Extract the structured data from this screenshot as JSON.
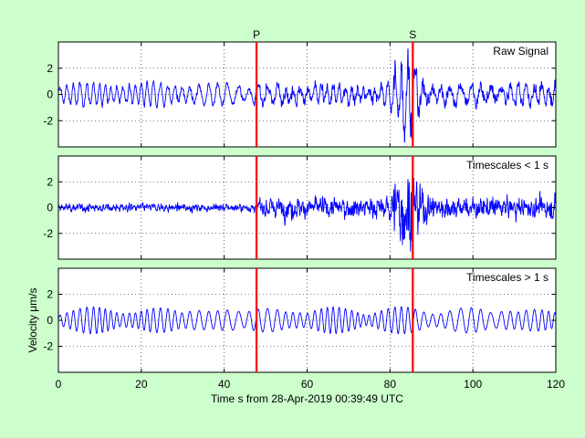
{
  "chart_data": {
    "type": "line",
    "xlabel": "Time s from 28-Apr-2019 00:39:49 UTC",
    "ylabel": "Velocity μm/s",
    "xlim": [
      0,
      120
    ],
    "xticks": [
      "0",
      "20",
      "40",
      "60",
      "80",
      "100",
      "120"
    ],
    "ylim": [
      -4,
      4
    ],
    "yticks": [
      "-2",
      "0",
      "2"
    ],
    "grid": true,
    "colors": {
      "trace": "#0000ff",
      "marker": "#ff0000",
      "background": "#ccffcc",
      "axes_bg": "#ffffff"
    },
    "phase_markers": [
      {
        "label": "P",
        "time": 47.8
      },
      {
        "label": "S",
        "time": 85.5
      }
    ],
    "panels": [
      {
        "title": "Raw Signal",
        "series": {
          "time_range": [
            0,
            120
          ],
          "amplitude_before_P": 1.2,
          "amplitude_after_P": 1.0,
          "peak_amplitude": 3.5,
          "peak_time": 84
        }
      },
      {
        "title": "Timescales < 1 s",
        "series": {
          "time_range": [
            0,
            120
          ],
          "amplitude_before_P": 0.3,
          "amplitude_after_P": 0.8,
          "peak_amplitude": 3.3,
          "peak_time": 84
        }
      },
      {
        "title": "Timescales > 1 s",
        "series": {
          "time_range": [
            0,
            120
          ],
          "amplitude_before_P": 1.0,
          "amplitude_after_P": 0.8,
          "peak_amplitude": 1.1,
          "peak_time": 30
        }
      }
    ]
  }
}
